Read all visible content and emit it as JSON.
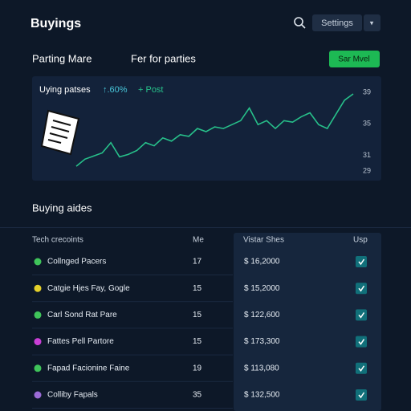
{
  "header": {
    "title": "Buyings",
    "settings": "Settings",
    "menu": "▾"
  },
  "toolbar": {
    "left": "Parting Mare",
    "middle": "Fer for parties",
    "button": "Sar Mvel"
  },
  "chart": {
    "type": "line",
    "title": "Uying patses",
    "change": "↑.60%",
    "action": "+ Post",
    "color": "#27c08a",
    "values": [
      29.6,
      30.5,
      30.9,
      31.3,
      32.6,
      30.8,
      31.1,
      31.6,
      32.6,
      32.2,
      33.2,
      32.8,
      33.6,
      33.4,
      34.4,
      34.0,
      34.6,
      34.4,
      34.9,
      35.4,
      37.0,
      34.9,
      35.4,
      34.4,
      35.4,
      35.2,
      35.9,
      36.4,
      34.9,
      34.4,
      36.2,
      38.0,
      38.8
    ],
    "ylim": [
      29,
      39
    ],
    "yticks": [
      39,
      35,
      31,
      29
    ]
  },
  "section": {
    "title": "Buying aides"
  },
  "table": {
    "headers": [
      "Tech crecoints",
      "Me",
      "Vistar Shes",
      "Usp"
    ],
    "rows": [
      [
        "Collnged Pacers",
        "17",
        "$ 16,2000"
      ],
      [
        "Catgie Hjes Fay, Gogle",
        "15",
        "$ 15,2000"
      ],
      [
        "Carl Sond Rat Pare",
        "15",
        "$ 122,600"
      ],
      [
        "Fattes Pell Partore",
        "15",
        "$ 173,300"
      ],
      [
        "Fapad Facionine Faine",
        "19",
        "$ 113,080"
      ],
      [
        "Colliby Fapals",
        "35",
        "$ 132,500"
      ]
    ],
    "dot_colors": [
      "#3fc45a",
      "#e4d02a",
      "#3fc45a",
      "#c93fd6",
      "#3fc45a",
      "#9b6bd6"
    ]
  }
}
